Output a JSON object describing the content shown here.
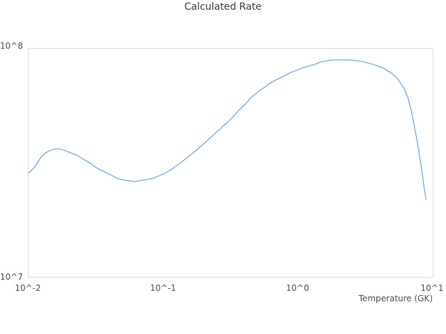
{
  "title": "Calculated Rate",
  "axes": {
    "x_label": "Temperature (GK)",
    "x_ticks": [
      "10^-2",
      "10^-1",
      "10^0",
      "10^1"
    ],
    "y_ticks": [
      "10^7",
      "10^8"
    ]
  },
  "colors": {
    "background": "#ffffff",
    "frame": "#d9d9d9",
    "line": "#5b9be0",
    "title_text": "#3c3c3c",
    "tick_text": "#4f4f4f"
  },
  "chart_data": {
    "type": "line",
    "title": "Calculated Rate",
    "xlabel": "Temperature (GK)",
    "ylabel": "",
    "x_scale": "log",
    "y_scale": "log",
    "xlim": [
      0.01,
      10
    ],
    "ylim": [
      10000000.0,
      100000000.0
    ],
    "x_tick_values": [
      0.01,
      0.1,
      1,
      10
    ],
    "y_tick_values": [
      10000000.0,
      100000000.0
    ],
    "grid": false,
    "legend": false,
    "series": [
      {
        "name": "calculated-rate",
        "color": "#5b9be0",
        "points": [
          [
            0.01,
            28500000.0
          ],
          [
            0.0106,
            29500000.0
          ],
          [
            0.0111,
            30300000.0
          ],
          [
            0.0118,
            32100000.0
          ],
          [
            0.0125,
            33700000.0
          ],
          [
            0.0133,
            34900000.0
          ],
          [
            0.0141,
            35600000.0
          ],
          [
            0.015,
            36100000.0
          ],
          [
            0.0159,
            36400000.0
          ],
          [
            0.0169,
            36400000.0
          ],
          [
            0.0179,
            36100000.0
          ],
          [
            0.019,
            35600000.0
          ],
          [
            0.0202,
            35100000.0
          ],
          [
            0.0215,
            34600000.0
          ],
          [
            0.0228,
            34200000.0
          ],
          [
            0.0242,
            33400000.0
          ],
          [
            0.0257,
            32700000.0
          ],
          [
            0.0272,
            32100000.0
          ],
          [
            0.0289,
            31400000.0
          ],
          [
            0.0307,
            30500000.0
          ],
          [
            0.0326,
            29900000.0
          ],
          [
            0.0346,
            29300000.0
          ],
          [
            0.0367,
            28900000.0
          ],
          [
            0.0389,
            28300000.0
          ],
          [
            0.0413,
            27900000.0
          ],
          [
            0.0439,
            27300000.0
          ],
          [
            0.0466,
            26900000.0
          ],
          [
            0.0494,
            26700000.0
          ],
          [
            0.0525,
            26500000.0
          ],
          [
            0.0557,
            26400000.0
          ],
          [
            0.0591,
            26200000.0
          ],
          [
            0.0627,
            26200000.0
          ],
          [
            0.0666,
            26400000.0
          ],
          [
            0.0707,
            26500000.0
          ],
          [
            0.075,
            26700000.0
          ],
          [
            0.0796,
            26900000.0
          ],
          [
            0.0845,
            27100000.0
          ],
          [
            0.0897,
            27500000.0
          ],
          [
            0.0952,
            27900000.0
          ],
          [
            0.1011,
            28300000.0
          ],
          [
            0.1073,
            28900000.0
          ],
          [
            0.1139,
            29500000.0
          ],
          [
            0.1209,
            30300000.0
          ],
          [
            0.1283,
            31000000.0
          ],
          [
            0.1362,
            31800000.0
          ],
          [
            0.1445,
            32700000.0
          ],
          [
            0.1534,
            33700000.0
          ],
          [
            0.1628,
            34600000.0
          ],
          [
            0.1728,
            35600000.0
          ],
          [
            0.1834,
            36700000.0
          ],
          [
            0.1947,
            37900000.0
          ],
          [
            0.2066,
            39000000.0
          ],
          [
            0.2193,
            40400000.0
          ],
          [
            0.2328,
            41600000.0
          ],
          [
            0.247,
            43100000.0
          ],
          [
            0.2622,
            44300000.0
          ],
          [
            0.2783,
            45900000.0
          ],
          [
            0.2954,
            47200000.0
          ],
          [
            0.3135,
            48900000.0
          ],
          [
            0.3327,
            50600000.0
          ],
          [
            0.3532,
            52800000.0
          ],
          [
            0.3749,
            54700000.0
          ],
          [
            0.3979,
            56600000.0
          ],
          [
            0.4223,
            58600000.0
          ],
          [
            0.4482,
            61200000.0
          ],
          [
            0.4758,
            62900000.0
          ],
          [
            0.505,
            64700000.0
          ],
          [
            0.536,
            66500000.0
          ],
          [
            0.5689,
            67900000.0
          ],
          [
            0.6039,
            69900000.0
          ],
          [
            0.641,
            71400000.0
          ],
          [
            0.6803,
            72900000.0
          ],
          [
            0.7221,
            74000000.0
          ],
          [
            0.7665,
            75500000.0
          ],
          [
            0.8135,
            76600000.0
          ],
          [
            0.8635,
            78200000.0
          ],
          [
            0.9165,
            79300000.0
          ],
          [
            0.9728,
            80400000.0
          ],
          [
            1.033,
            81600000.0
          ],
          [
            1.096,
            82700000.0
          ],
          [
            1.163,
            83300000.0
          ],
          [
            1.235,
            84500000.0
          ],
          [
            1.31,
            85100000.0
          ],
          [
            1.391,
            86300000.0
          ],
          [
            1.476,
            87500000.0
          ],
          [
            1.567,
            88100000.0
          ],
          [
            1.663,
            88700000.0
          ],
          [
            1.873,
            89300000.0
          ],
          [
            2.11,
            89300000.0
          ],
          [
            2.376,
            89300000.0
          ],
          [
            2.676,
            88700000.0
          ],
          [
            3.014,
            87800000.0
          ],
          [
            3.395,
            86300000.0
          ],
          [
            3.824,
            84500000.0
          ],
          [
            4.308,
            82200000.0
          ],
          [
            4.572,
            80400000.0
          ],
          [
            4.852,
            78700000.0
          ],
          [
            5.15,
            76600000.0
          ],
          [
            5.466,
            74000000.0
          ],
          [
            5.801,
            70400000.0
          ],
          [
            6.157,
            66500000.0
          ],
          [
            6.534,
            61200000.0
          ],
          [
            6.935,
            53200000.0
          ],
          [
            7.36,
            44600000.0
          ],
          [
            7.811,
            36700000.0
          ],
          [
            8.29,
            29300000.0
          ],
          [
            8.587,
            25100000.0
          ],
          [
            8.895,
            21900000.0
          ]
        ]
      }
    ]
  }
}
